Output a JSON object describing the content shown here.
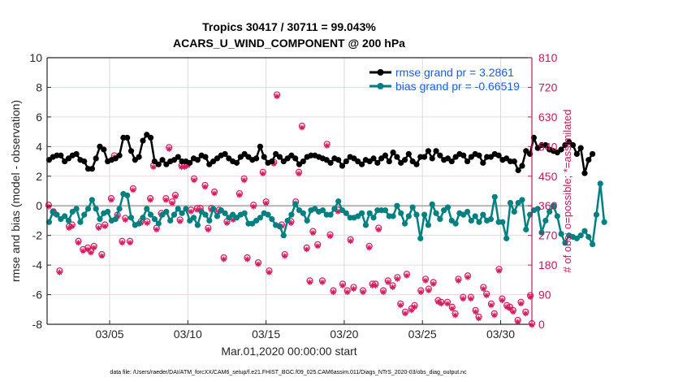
{
  "chart_data": {
    "type": "line",
    "title": "Tropics 30417 / 30711 = 99.043%",
    "subtitle": "ACARS_U_WIND_COMPONENT @ 200 hPa",
    "xlabel": "Mar.01,2020 00:00:00 start",
    "ylabel": "rmse and bias (model - observation)",
    "ylabel_right": "# of obs: o=possible; *=assimilated",
    "footer": "data file: /Users/raeder/DAI/ATM_forcXX/CAM6_setup/f.e21.FHIST_BGC.f09_025.CAM6assim.011/Diags_NTrS_2020-03/obs_diag_output.nc",
    "xlim_days": [
      0,
      31
    ],
    "ylim": [
      -8,
      10
    ],
    "ylim_right": [
      0,
      810
    ],
    "grid": true,
    "legend_position": "top-right",
    "x_ticks": [
      {
        "day": 4,
        "label": "03/05"
      },
      {
        "day": 9,
        "label": "03/10"
      },
      {
        "day": 14,
        "label": "03/15"
      },
      {
        "day": 19,
        "label": "03/20"
      },
      {
        "day": 24,
        "label": "03/25"
      },
      {
        "day": 29,
        "label": "03/30"
      }
    ],
    "y_ticks": [
      "10",
      "8",
      "6",
      "4",
      "2",
      "0",
      "-2",
      "-4",
      "-6",
      "-8"
    ],
    "y_ticks_right": [
      "810",
      "720",
      "630",
      "540",
      "450",
      "360",
      "270",
      "180",
      "90",
      "0"
    ],
    "colors": {
      "rmse": "#000000",
      "bias": "#008080",
      "obs": "#d81b60",
      "zero_line": "#b3b3b3",
      "grid": "#f2d5e1",
      "vgrid": "#d9d9d9",
      "right_axis": "#c2185b",
      "legend_text": "#1a5fe0"
    },
    "series": [
      {
        "name": "rmse grand pr = 3.2861",
        "key": "rmse",
        "x_step_days": 0.25,
        "values": [
          3.1,
          3.3,
          3.4,
          3.4,
          3.0,
          3.2,
          3.4,
          3.5,
          3.1,
          3.0,
          2.5,
          2.5,
          3.2,
          4.0,
          3.8,
          3.0,
          3.1,
          3.2,
          3.4,
          4.6,
          4.6,
          3.7,
          3.1,
          3.3,
          4.4,
          4.8,
          4.6,
          3.0,
          2.8,
          3.1,
          2.8,
          3.0,
          3.1,
          3.3,
          3.0,
          3.0,
          2.9,
          3.2,
          3.1,
          3.4,
          3.3,
          2.8,
          3.0,
          3.2,
          3.4,
          3.5,
          3.2,
          3.0,
          2.9,
          3.3,
          3.5,
          3.3,
          3.1,
          3.2,
          4.0,
          3.3,
          2.9,
          3.0,
          3.5,
          3.3,
          3.0,
          3.2,
          3.4,
          3.2,
          2.8,
          3.0,
          3.3,
          3.4,
          3.4,
          3.3,
          3.2,
          3.1,
          2.9,
          3.2,
          3.1,
          2.7,
          3.0,
          3.3,
          3.2,
          3.0,
          2.8,
          3.1,
          3.0,
          3.2,
          2.9,
          3.2,
          3.4,
          3.0,
          3.6,
          3.3,
          2.9,
          3.1,
          3.5,
          3.0,
          2.8,
          3.3,
          3.3,
          3.7,
          3.2,
          3.7,
          3.4,
          3.1,
          3.2,
          3.0,
          3.3,
          3.5,
          3.4,
          3.0,
          3.3,
          3.5,
          3.4,
          2.9,
          3.3,
          3.3,
          3.5,
          3.4,
          3.1,
          3.2,
          3.0,
          3.0,
          2.4,
          2.7,
          3.7,
          3.5,
          4.6,
          3.9,
          4.1,
          4.1,
          3.8,
          3.7,
          3.6,
          3.8,
          4.1,
          4.3,
          4.1,
          3.5,
          3.9,
          2.2,
          3.1,
          3.5
        ]
      },
      {
        "name": "bias grand pr = -0.66519",
        "key": "bias",
        "x_step_days": 0.25,
        "values": [
          -1.1,
          -0.4,
          -0.6,
          -0.9,
          -0.7,
          -1.0,
          -0.4,
          -0.2,
          -1.1,
          -0.6,
          -0.2,
          0.4,
          -0.2,
          -0.9,
          -0.5,
          -0.4,
          -1.0,
          -0.9,
          -0.2,
          0.8,
          0.7,
          -0.8,
          -1.3,
          -1.2,
          -0.8,
          -0.2,
          -0.6,
          -0.9,
          -1.2,
          -0.6,
          -0.4,
          -1.0,
          -0.6,
          -0.2,
          -0.5,
          -0.2,
          -1.0,
          -0.8,
          -1.3,
          -0.4,
          -0.6,
          -1.0,
          -0.2,
          -0.7,
          -0.3,
          -0.5,
          -0.8,
          -0.6,
          -0.8,
          -0.6,
          -0.5,
          -1.2,
          -1.2,
          -1.0,
          -0.8,
          -0.5,
          -0.6,
          -0.9,
          -1.3,
          -1.4,
          -2.0,
          -1.0,
          -0.6,
          0.1,
          -0.3,
          -0.5,
          -1.0,
          -0.3,
          -0.2,
          -0.4,
          -0.3,
          -0.6,
          -0.6,
          -0.2,
          0.3,
          -0.3,
          -0.5,
          -0.8,
          -0.8,
          -0.7,
          -0.5,
          -1.3,
          -0.5,
          -0.8,
          -0.3,
          -0.3,
          -0.3,
          -0.7,
          -0.7,
          0.0,
          -0.5,
          -1.2,
          -0.7,
          -0.1,
          -0.6,
          -2.2,
          -0.6,
          -1.3,
          0.1,
          -0.5,
          -0.9,
          -0.3,
          -0.1,
          -1.0,
          -1.2,
          -0.5,
          -0.6,
          -0.4,
          -1.0,
          -0.7,
          -1.1,
          -0.6,
          -1.0,
          -0.9,
          0.6,
          -1.1,
          -1.1,
          -2.2,
          0.2,
          -0.4,
          0.2,
          0.4,
          -1.6,
          -0.6,
          -0.3,
          -0.2,
          -1.8,
          -1.0,
          -0.4,
          0.0,
          -0.7,
          -1.9,
          -2.5,
          -2.0,
          -2.1,
          -2.2,
          -2.0,
          -1.7,
          -2.1,
          -2.6,
          -0.6,
          1.5,
          -1.1
        ]
      }
    ],
    "obs_possible": {
      "name": "possible",
      "points": [
        [
          0.1,
          360
        ],
        [
          0.4,
          340
        ],
        [
          0.8,
          160
        ],
        [
          1.4,
          295
        ],
        [
          1.6,
          300
        ],
        [
          2.0,
          250
        ],
        [
          2.3,
          225
        ],
        [
          2.6,
          230
        ],
        [
          2.8,
          220
        ],
        [
          3.0,
          235
        ],
        [
          3.3,
          295
        ],
        [
          3.5,
          210
        ],
        [
          3.7,
          300
        ],
        [
          4.1,
          380
        ],
        [
          4.3,
          510
        ],
        [
          4.5,
          330
        ],
        [
          4.8,
          250
        ],
        [
          5.0,
          320
        ],
        [
          5.3,
          250
        ],
        [
          5.5,
          410
        ],
        [
          6.0,
          310
        ],
        [
          6.4,
          310
        ],
        [
          6.6,
          380
        ],
        [
          6.8,
          480
        ],
        [
          7.0,
          290
        ],
        [
          7.3,
          335
        ],
        [
          7.6,
          380
        ],
        [
          7.8,
          535
        ],
        [
          8.0,
          370
        ],
        [
          8.2,
          390
        ],
        [
          8.5,
          315
        ],
        [
          8.6,
          480
        ],
        [
          8.8,
          480
        ],
        [
          9.0,
          485
        ],
        [
          9.2,
          345
        ],
        [
          9.4,
          440
        ],
        [
          9.6,
          350
        ],
        [
          9.8,
          350
        ],
        [
          10.1,
          420
        ],
        [
          10.3,
          290
        ],
        [
          10.5,
          350
        ],
        [
          10.7,
          400
        ],
        [
          11.0,
          345
        ],
        [
          11.3,
          200
        ],
        [
          11.5,
          310
        ],
        [
          11.9,
          320
        ],
        [
          12.3,
          395
        ],
        [
          12.6,
          440
        ],
        [
          12.8,
          200
        ],
        [
          13.2,
          360
        ],
        [
          13.5,
          185
        ],
        [
          13.8,
          460
        ],
        [
          14.0,
          370
        ],
        [
          14.2,
          160
        ],
        [
          14.5,
          490
        ],
        [
          14.7,
          695
        ],
        [
          15.0,
          300
        ],
        [
          15.2,
          210
        ],
        [
          15.6,
          310
        ],
        [
          15.9,
          370
        ],
        [
          16.1,
          460
        ],
        [
          16.3,
          600
        ],
        [
          16.6,
          230
        ],
        [
          16.8,
          130
        ],
        [
          17.0,
          280
        ],
        [
          17.3,
          240
        ],
        [
          17.6,
          130
        ],
        [
          17.9,
          545
        ],
        [
          18.1,
          270
        ],
        [
          18.3,
          100
        ],
        [
          18.6,
          345
        ],
        [
          18.9,
          120
        ],
        [
          19.2,
          100
        ],
        [
          19.4,
          255
        ],
        [
          19.6,
          110
        ],
        [
          20.2,
          100
        ],
        [
          20.6,
          235
        ],
        [
          20.8,
          120
        ],
        [
          21.0,
          120
        ],
        [
          21.2,
          290
        ],
        [
          21.5,
          100
        ],
        [
          21.8,
          130
        ],
        [
          22.1,
          115
        ],
        [
          22.4,
          140
        ],
        [
          22.6,
          60
        ],
        [
          22.9,
          35
        ],
        [
          23.0,
          150
        ],
        [
          23.3,
          45
        ],
        [
          23.5,
          55
        ],
        [
          23.9,
          100
        ],
        [
          24.2,
          135
        ],
        [
          24.4,
          105
        ],
        [
          24.7,
          125
        ],
        [
          25.0,
          70
        ],
        [
          25.2,
          65
        ],
        [
          25.6,
          65
        ],
        [
          25.9,
          50
        ],
        [
          26.1,
          30
        ],
        [
          26.3,
          135
        ],
        [
          26.6,
          80
        ],
        [
          26.9,
          145
        ],
        [
          27.1,
          80
        ],
        [
          27.4,
          40
        ],
        [
          27.6,
          20
        ],
        [
          27.9,
          110
        ],
        [
          28.1,
          90
        ],
        [
          28.4,
          60
        ],
        [
          28.6,
          30
        ],
        [
          28.9,
          165
        ],
        [
          29.1,
          75
        ],
        [
          29.4,
          55
        ],
        [
          29.6,
          50
        ],
        [
          29.8,
          40
        ],
        [
          30.1,
          10
        ],
        [
          30.3,
          65
        ],
        [
          30.6,
          35
        ],
        [
          30.9,
          85
        ],
        [
          31.0,
          0
        ]
      ]
    },
    "obs_assimilated": {
      "name": "assimilated",
      "note": "nearly identical to possible; markers overlap"
    }
  },
  "legend": {
    "rmse_label": "rmse grand pr = 3.2861",
    "bias_label": "bias grand pr = -0.66519"
  }
}
